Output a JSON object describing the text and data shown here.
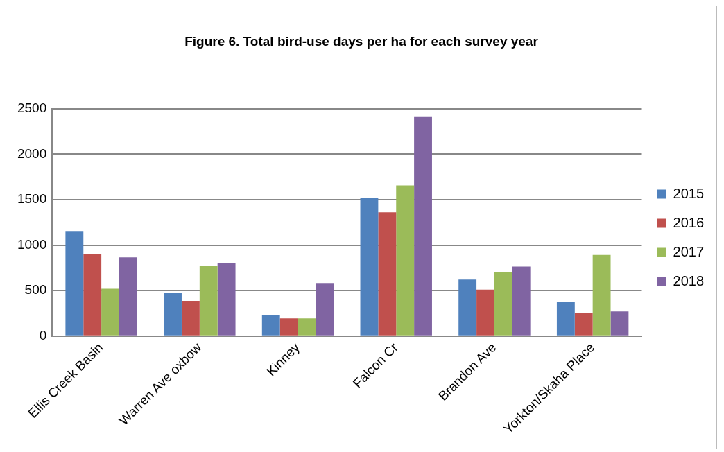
{
  "chart_data": {
    "type": "bar",
    "title": "Figure 6. Total bird-use days per ha for each survey year",
    "categories": [
      "Ellis Creek Basin",
      "Warren Ave oxbow",
      "Kinney",
      "Falcon Cr",
      "Brandon Ave",
      "Yorkton/Skaha Place"
    ],
    "series": [
      {
        "name": "2015",
        "color": "#4f81bd",
        "values": [
          1155,
          472,
          231,
          1516,
          620,
          373
        ]
      },
      {
        "name": "2016",
        "color": "#c0504d",
        "values": [
          905,
          386,
          193,
          1361,
          510,
          250
        ]
      },
      {
        "name": "2017",
        "color": "#9bbb59",
        "values": [
          519,
          772,
          193,
          1655,
          699,
          892
        ]
      },
      {
        "name": "2018",
        "color": "#8064a2",
        "values": [
          864,
          801,
          582,
          2408,
          763,
          269
        ]
      }
    ],
    "ylim": [
      0,
      2500
    ],
    "yticks": [
      0,
      500,
      1000,
      1500,
      2000,
      2500
    ],
    "grid": "y",
    "legend": "right"
  }
}
